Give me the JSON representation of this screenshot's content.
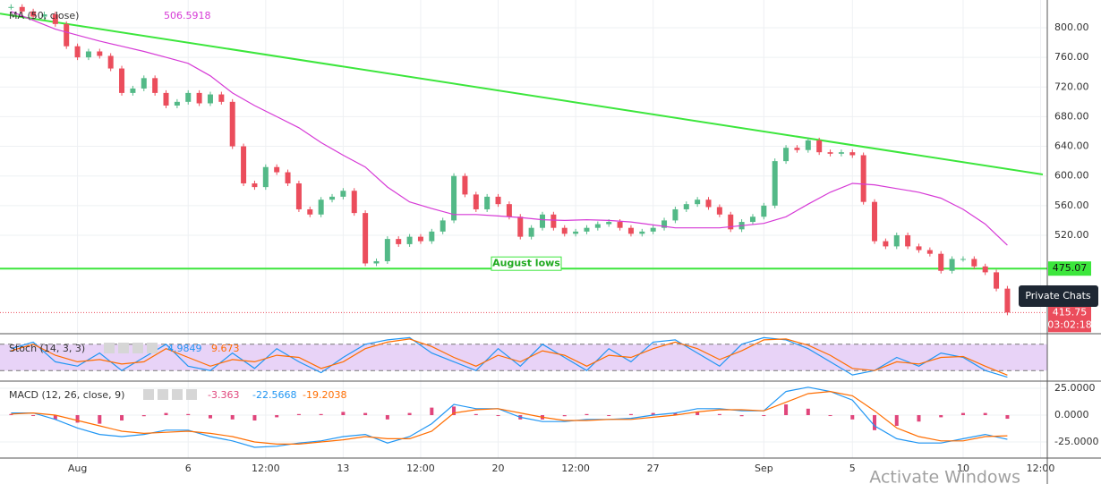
{
  "chart_data": [
    {
      "type": "candlestick",
      "up_color": "#53b987",
      "down_color": "#eb4d5c",
      "x": [
        -2,
        -1.5,
        -1,
        -0.5,
        0,
        0.5,
        1,
        1.5,
        2,
        2.5,
        3,
        3.5,
        4,
        4.5,
        5,
        5.5,
        6,
        6.5,
        7,
        7.5,
        8,
        8.5,
        9,
        9.5,
        10,
        10.5,
        11,
        11.5,
        12,
        12.5,
        13,
        13.5,
        14,
        14.5,
        15,
        15.5,
        16,
        16.5,
        17,
        17.5,
        18,
        18.5,
        19,
        19.5,
        20,
        20.5,
        21,
        21.5,
        22,
        22.5,
        23,
        23.5,
        24,
        24.5,
        25,
        25.5,
        26,
        26.5,
        27,
        27.5,
        28,
        28.5,
        29,
        29.5,
        30,
        30.5,
        31,
        31.5,
        32,
        32.5,
        33,
        33.5,
        34,
        34.5,
        35,
        35.5,
        36,
        36.5,
        37,
        37.5,
        38,
        38.5,
        39,
        39.5,
        40,
        40.5,
        41,
        41.5,
        42,
        42.5,
        43
      ],
      "close": [
        828,
        822,
        815,
        818,
        805,
        775,
        760,
        768,
        762,
        745,
        712,
        718,
        732,
        712,
        695,
        700,
        712,
        698,
        710,
        700,
        640,
        590,
        585,
        612,
        605,
        590,
        555,
        548,
        568,
        572,
        580,
        550,
        482,
        485,
        515,
        508,
        518,
        512,
        525,
        540,
        600,
        575,
        555,
        572,
        562,
        545,
        518,
        530,
        548,
        530,
        522,
        525,
        530,
        535,
        538,
        530,
        522,
        525,
        530,
        540,
        555,
        562,
        568,
        558,
        548,
        528,
        538,
        545,
        560,
        620,
        638,
        635,
        648,
        632,
        630,
        632,
        628,
        565,
        512,
        505,
        520,
        505,
        500,
        495,
        472,
        488,
        488,
        478,
        470,
        448,
        415.75
      ],
      "countdown": "03:02:18",
      "ylim": [
        388.4,
        837.4
      ],
      "yticks": [
        {
          "value": 800,
          "label": "800.00"
        },
        {
          "value": 760,
          "label": "760.00"
        },
        {
          "value": 720,
          "label": "720.00"
        },
        {
          "value": 680,
          "label": "680.00"
        },
        {
          "value": 640,
          "label": "640.00"
        },
        {
          "value": 600,
          "label": "600.00"
        },
        {
          "value": 560,
          "label": "560.00"
        },
        {
          "value": 520,
          "label": "520.00"
        }
      ],
      "ma": {
        "name": "MA (50, close)",
        "color": "#d63ad6",
        "x": [
          -2,
          -1,
          0,
          1,
          2,
          3,
          4,
          5,
          6,
          7,
          8,
          9,
          10,
          11,
          12,
          13,
          14,
          15,
          16,
          17,
          18,
          19,
          20,
          21,
          22,
          23,
          24,
          25,
          26,
          27,
          28,
          29,
          30,
          31,
          32,
          33,
          34,
          35,
          36,
          37,
          38,
          39,
          40,
          41,
          42,
          43
        ],
        "values": [
          822,
          810,
          798,
          790,
          782,
          775,
          768,
          760,
          752,
          735,
          712,
          695,
          680,
          665,
          645,
          628,
          612,
          585,
          565,
          556,
          548,
          548,
          546,
          544,
          541,
          540,
          541,
          540,
          538,
          534,
          530,
          530,
          530,
          533,
          536,
          545,
          562,
          578,
          590,
          588,
          583,
          578,
          570,
          555,
          535,
          506.5918
        ]
      },
      "trendline": {
        "color": "#3ce63c",
        "x": [
          -2.5,
          44.6
        ],
        "y": [
          819,
          602
        ]
      },
      "hline": {
        "label": "August lows",
        "value": 475.07,
        "color": "#3ce63c"
      }
    },
    {
      "type": "stoch",
      "title": "Stoch (14, 3, 3)",
      "x": [
        -2,
        -1,
        0,
        1,
        2,
        3,
        4,
        5,
        6,
        7,
        8,
        9,
        10,
        11,
        12,
        13,
        14,
        15,
        16,
        17,
        18,
        19,
        20,
        21,
        22,
        23,
        24,
        25,
        26,
        27,
        28,
        29,
        30,
        31,
        32,
        33,
        34,
        35,
        36,
        37,
        38,
        39,
        40,
        41,
        42,
        43
      ],
      "series": [
        {
          "color": "#2196f3",
          "values": [
            70,
            85,
            40,
            30,
            60,
            20,
            50,
            80,
            30,
            20,
            60,
            25,
            70,
            40,
            15,
            50,
            80,
            90,
            95,
            60,
            40,
            20,
            70,
            30,
            80,
            50,
            20,
            70,
            40,
            85,
            90,
            60,
            30,
            80,
            95,
            90,
            70,
            40,
            10,
            20,
            50,
            30,
            60,
            50,
            20,
            4.9849
          ]
        },
        {
          "color": "#ff6d00",
          "values": [
            65,
            80,
            55,
            40,
            45,
            35,
            40,
            70,
            50,
            30,
            45,
            40,
            55,
            50,
            25,
            40,
            70,
            85,
            92,
            75,
            50,
            30,
            55,
            40,
            65,
            55,
            30,
            55,
            50,
            70,
            85,
            70,
            45,
            65,
            90,
            92,
            78,
            55,
            25,
            20,
            40,
            35,
            50,
            52,
            30,
            9.673
          ]
        }
      ],
      "ylim": [
        0,
        100
      ],
      "bands": [
        20,
        80
      ],
      "band_color": "#e8d3f7"
    },
    {
      "type": "macd",
      "title": "MACD (12, 26, close, 9)",
      "x": [
        -2,
        -1,
        0,
        1,
        2,
        3,
        4,
        5,
        6,
        7,
        8,
        9,
        10,
        11,
        12,
        13,
        14,
        15,
        16,
        17,
        18,
        19,
        20,
        21,
        22,
        23,
        24,
        25,
        26,
        27,
        28,
        29,
        30,
        31,
        32,
        33,
        34,
        35,
        36,
        37,
        38,
        39,
        40,
        41,
        42,
        43
      ],
      "histogram": {
        "color": "#e0457b",
        "values": [
          1,
          0,
          -4,
          -7,
          -8,
          -5,
          -1,
          2,
          1,
          -3,
          -4,
          -5,
          -2,
          1,
          1,
          3,
          2,
          -4,
          2,
          7,
          8,
          1,
          0,
          -4,
          -4,
          -1,
          1,
          0,
          1,
          2,
          2,
          3,
          1,
          -1,
          0,
          10,
          6,
          0,
          -4,
          -14,
          -10,
          -6,
          -2,
          2,
          2,
          -3.363
        ]
      },
      "series": [
        {
          "color": "#2196f3",
          "values": [
            2,
            2,
            -4,
            -12,
            -18,
            -20,
            -18,
            -14,
            -14,
            -20,
            -24,
            -30,
            -29,
            -26,
            -24,
            -20,
            -18,
            -26,
            -20,
            -8,
            10,
            6,
            6,
            -2,
            -6,
            -6,
            -4,
            -4,
            -3,
            0,
            2,
            6,
            6,
            4,
            4,
            22,
            26,
            22,
            14,
            -10,
            -22,
            -26,
            -26,
            -22,
            -18,
            -22.5668
          ]
        },
        {
          "color": "#ff6d00",
          "values": [
            1,
            2,
            0,
            -5,
            -10,
            -15,
            -17,
            -16,
            -15,
            -17,
            -20,
            -25,
            -27,
            -27,
            -25,
            -23,
            -20,
            -22,
            -22,
            -15,
            2,
            5,
            6,
            2,
            -2,
            -5,
            -5,
            -4,
            -4,
            -2,
            0,
            3,
            5,
            5,
            4,
            12,
            20,
            22,
            18,
            4,
            -12,
            -20,
            -24,
            -24,
            -20,
            -19.2038
          ]
        }
      ],
      "ylim": [
        -38.3,
        30
      ],
      "yticks": [
        {
          "value": 25,
          "label": "25.0000"
        },
        {
          "value": 0,
          "label": "0.0000"
        },
        {
          "value": -25,
          "label": "-25.0000"
        }
      ],
      "xlim": [
        -2.5,
        44.6
      ],
      "xticks": [
        {
          "value": 1,
          "label": "Aug"
        },
        6,
        {
          "value": 9.5,
          "label": "12:00"
        },
        13,
        {
          "value": 16.5,
          "label": "12:00"
        },
        20,
        {
          "value": 23.5,
          "label": "12:00"
        },
        27,
        {
          "value": 32,
          "label": "Sep"
        },
        {
          "value": 36,
          "label": "5"
        },
        {
          "value": 41,
          "label": "10"
        },
        {
          "value": 44.5,
          "label": "12:00"
        }
      ]
    }
  ],
  "ui": {
    "private_chats": "Private Chats",
    "watermark": "Activate Windows"
  }
}
